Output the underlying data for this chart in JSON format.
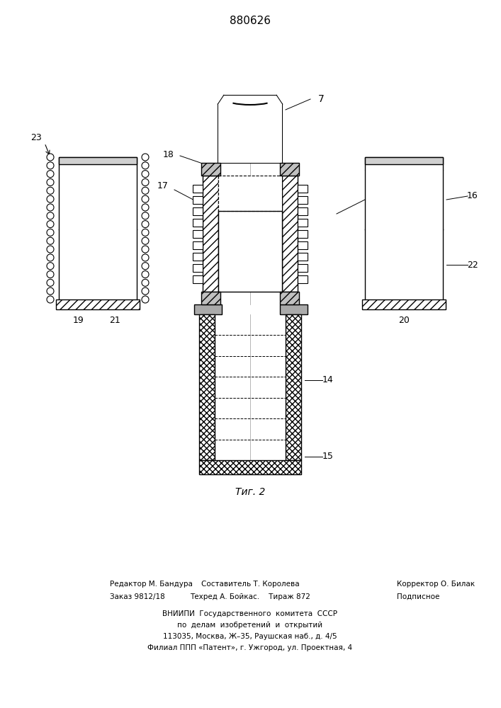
{
  "patent_number": "880626",
  "fig_label": "Τиг. 2",
  "background_color": "#ffffff",
  "footer_text_col1_r1": "Редактор М. Бандура",
  "footer_text_col1_r2": "Заказ 9812/18",
  "footer_text_col2_r1": "Составитель Т. Королева",
  "footer_text_col2_r2": "Техред А. Бойкас.    Тираж 872",
  "footer_text_col3_r1": "Корректор О. Билак",
  "footer_text_col3_r2": "Подписное",
  "footer_vniipi": "ВНИИПИ  Государственного  комитета  СССР",
  "footer_po": "по  делам  изобретений  и  открытий",
  "footer_addr": "113035, Москва, Ж–35, Раушская наб., д. 4/5",
  "footer_filial": "Филиал ППП «Патент», г. Ужгород, ул. Проектная, 4"
}
